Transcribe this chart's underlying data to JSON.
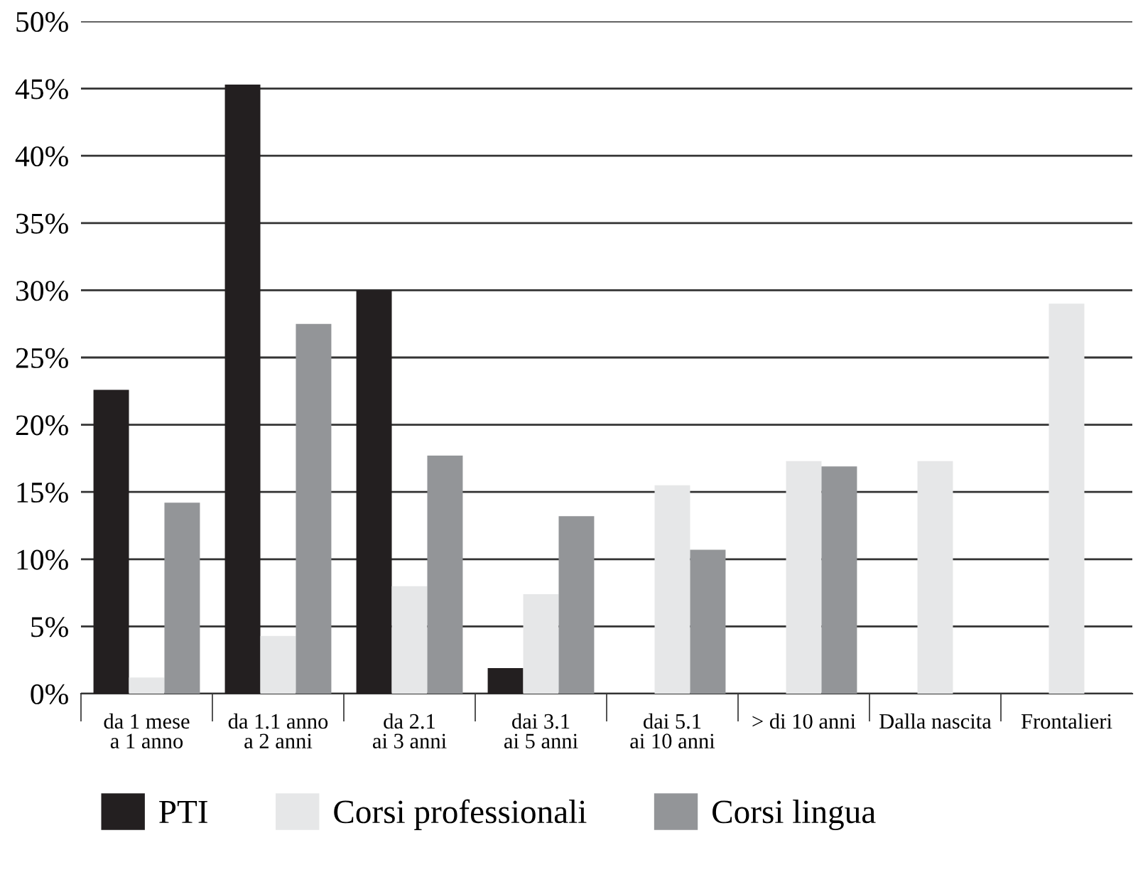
{
  "chart_data": {
    "type": "bar",
    "categories": [
      "da 1 mese\na 1 anno",
      "da 1.1 anno\na 2 anni",
      "da 2.1\nai 3 anni",
      "dai 3.1\nai 5 anni",
      "dai 5.1\nai 10 anni",
      "> di 10 anni",
      "Dalla nascita",
      "Frontalieri"
    ],
    "series": [
      {
        "name": "PTI",
        "color": "#231f20",
        "values": [
          22.6,
          45.3,
          30.0,
          1.9,
          null,
          null,
          null,
          null
        ]
      },
      {
        "name": "Corsi professionali",
        "color": "#e6e7e8",
        "values": [
          1.2,
          4.3,
          8.0,
          7.4,
          15.5,
          17.3,
          17.3,
          29.0
        ]
      },
      {
        "name": "Corsi lingua",
        "color": "#939598",
        "values": [
          14.2,
          27.5,
          17.7,
          13.2,
          10.7,
          16.9,
          null,
          null
        ]
      }
    ],
    "ylim": [
      0,
      50
    ],
    "yticks": [
      {
        "value": 0,
        "label": "0%"
      },
      {
        "value": 5,
        "label": "5%"
      },
      {
        "value": 10,
        "label": "10%"
      },
      {
        "value": 15,
        "label": "15%"
      },
      {
        "value": 20,
        "label": "20%"
      },
      {
        "value": 25,
        "label": "25%"
      },
      {
        "value": 30,
        "label": "30%"
      },
      {
        "value": 35,
        "label": "35%"
      },
      {
        "value": 40,
        "label": "40%"
      },
      {
        "value": 45,
        "label": "45%"
      },
      {
        "value": 50,
        "label": "50%"
      }
    ],
    "grid": "y",
    "legend": "bottom"
  }
}
